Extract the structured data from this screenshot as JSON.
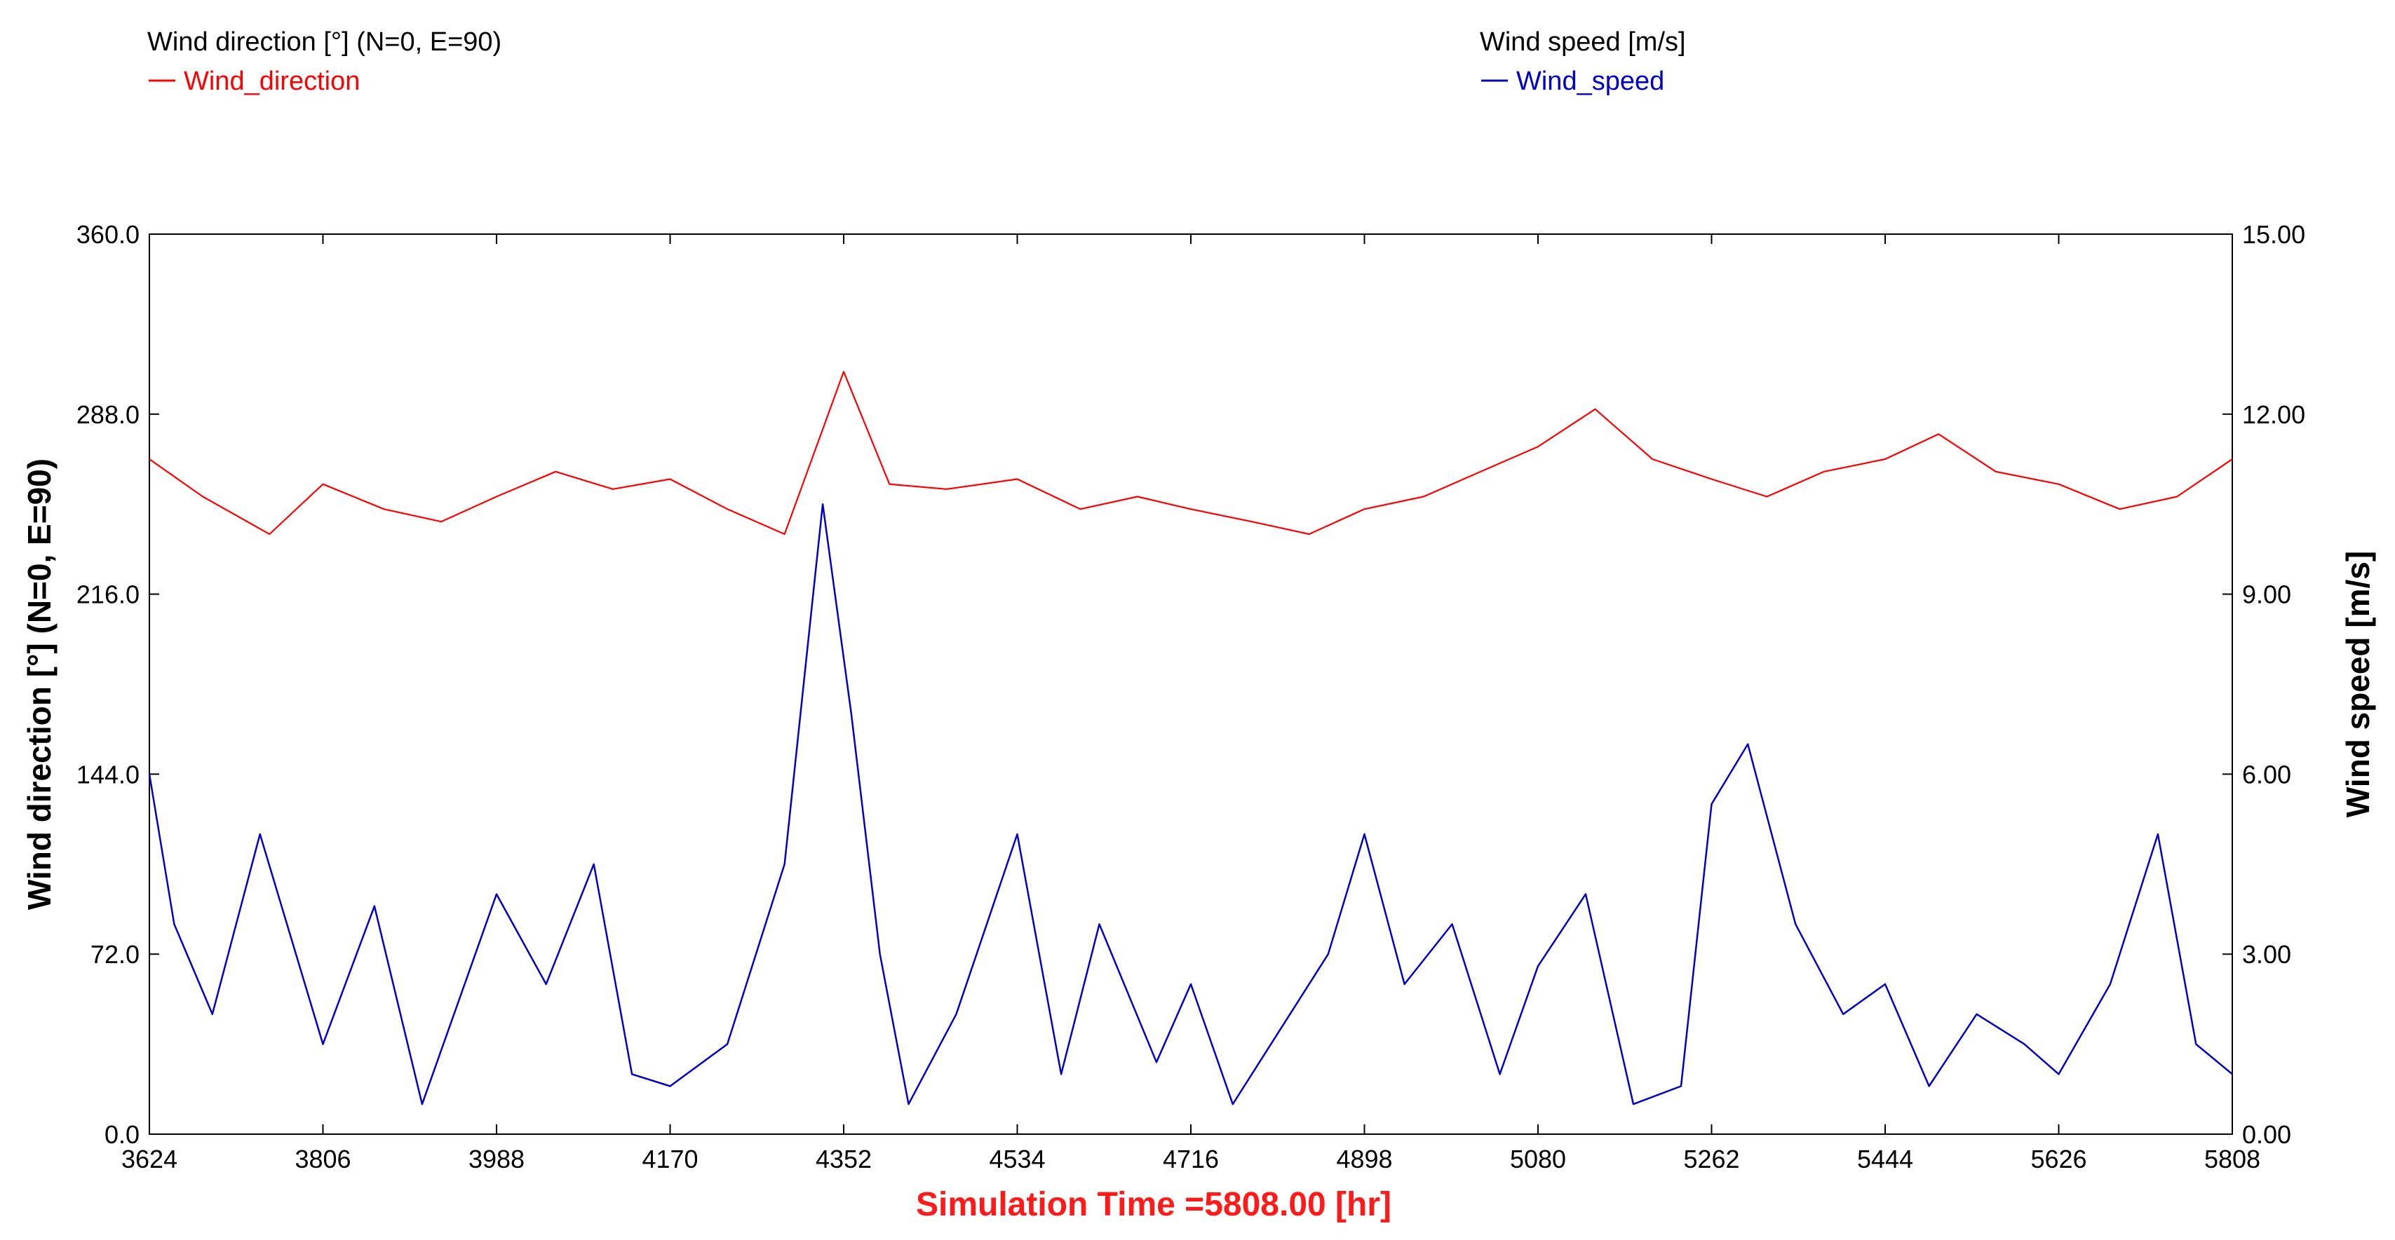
{
  "chart_data": {
    "type": "line",
    "title": "",
    "xlabel": "Simulation Time =5808.00 [hr]",
    "ylabel_left": "Wind direction [°] (N=0, E=90)",
    "ylabel_right": "Wind speed [m/s]",
    "xlim": [
      3624,
      5808
    ],
    "ylim_left": [
      0.0,
      360.0
    ],
    "ylim_right": [
      0.0,
      15.0
    ],
    "x_ticks": [
      "3624",
      "3806",
      "3988",
      "4170",
      "4352",
      "4534",
      "4716",
      "4898",
      "5080",
      "5262",
      "5444",
      "5626",
      "5808"
    ],
    "y_left_ticks": [
      "0.0",
      "72.0",
      "144.0",
      "216.0",
      "288.0",
      "360.0"
    ],
    "y_right_ticks": [
      "0.00",
      "3.00",
      "6.00",
      "9.00",
      "12.00",
      "15.00"
    ],
    "grid": false,
    "series": [
      {
        "name": "Wind_direction",
        "axis": "left",
        "unit_label": "Wind direction [°] (N=0, E=90)",
        "color": "#ff0000",
        "x": [
          3624,
          3680,
          3750,
          3806,
          3870,
          3930,
          3988,
          4050,
          4110,
          4170,
          4230,
          4290,
          4352,
          4400,
          4460,
          4534,
          4600,
          4660,
          4716,
          4780,
          4840,
          4898,
          4960,
          5020,
          5080,
          5140,
          5200,
          5262,
          5320,
          5380,
          5444,
          5500,
          5560,
          5626,
          5690,
          5750,
          5808
        ],
        "values": [
          270,
          255,
          240,
          260,
          250,
          245,
          255,
          265,
          258,
          262,
          250,
          240,
          305,
          260,
          258,
          262,
          250,
          255,
          250,
          245,
          240,
          250,
          255,
          265,
          275,
          290,
          270,
          262,
          255,
          265,
          270,
          280,
          265,
          260,
          250,
          255,
          270
        ]
      },
      {
        "name": "Wind_speed",
        "axis": "right",
        "unit_label": "Wind speed [m/s]",
        "color": "#0000cc",
        "x": [
          3624,
          3650,
          3690,
          3740,
          3806,
          3860,
          3910,
          3988,
          4040,
          4090,
          4130,
          4170,
          4230,
          4290,
          4330,
          4360,
          4390,
          4420,
          4470,
          4534,
          4580,
          4620,
          4680,
          4716,
          4760,
          4820,
          4860,
          4898,
          4940,
          4990,
          5040,
          5080,
          5130,
          5180,
          5230,
          5262,
          5300,
          5350,
          5400,
          5444,
          5490,
          5540,
          5590,
          5626,
          5680,
          5730,
          5770,
          5808
        ],
        "values": [
          6.0,
          3.5,
          2.0,
          5.0,
          1.5,
          3.8,
          0.5,
          4.0,
          2.5,
          4.5,
          1.0,
          0.8,
          1.5,
          4.5,
          10.5,
          7.0,
          3.0,
          0.5,
          2.0,
          5.0,
          1.0,
          3.5,
          1.2,
          2.5,
          0.5,
          2.0,
          3.0,
          5.0,
          2.5,
          3.5,
          1.0,
          2.8,
          4.0,
          0.5,
          0.8,
          5.5,
          6.5,
          3.5,
          2.0,
          2.5,
          0.8,
          2.0,
          1.5,
          1.0,
          2.5,
          5.0,
          1.5,
          1.0
        ]
      }
    ]
  }
}
